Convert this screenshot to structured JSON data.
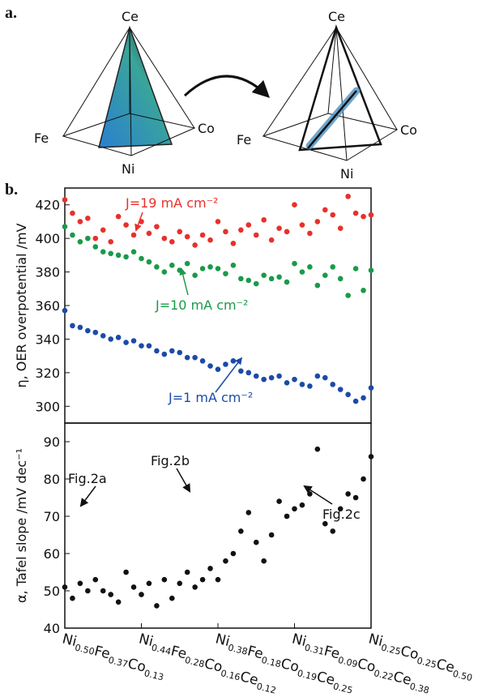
{
  "panel_labels": [
    "a.",
    "b."
  ],
  "diagrams": [
    {
      "labels": [
        "Ce",
        "Fe",
        "Co",
        "Ni"
      ]
    },
    {
      "labels": [
        "Ce",
        "Fe",
        "Co",
        "Ni"
      ]
    }
  ],
  "chart_data": [
    {
      "type": "scatter",
      "ylabel": "η, OER overpotential /mV",
      "x": [
        0,
        0.1,
        0.2,
        0.3,
        0.4,
        0.5,
        0.6,
        0.7,
        0.8,
        0.9,
        1,
        1.1,
        1.2,
        1.3,
        1.4,
        1.5,
        1.6,
        1.7,
        1.8,
        1.9,
        2,
        2.1,
        2.2,
        2.3,
        2.4,
        2.5,
        2.6,
        2.7,
        2.8,
        2.9,
        3,
        3.1,
        3.2,
        3.3,
        3.4,
        3.5,
        3.6,
        3.7,
        3.8,
        3.9,
        4
      ],
      "xlim": [
        0,
        4
      ],
      "ylim": [
        290,
        430
      ],
      "yticks": [
        300,
        320,
        340,
        360,
        380,
        400,
        420
      ],
      "series": [
        {
          "name": "J=19 mA cm⁻²",
          "color": "#e8302c",
          "values": [
            423,
            415,
            410,
            412,
            400,
            405,
            398,
            413,
            408,
            402,
            410,
            403,
            407,
            400,
            398,
            404,
            401,
            396,
            402,
            399,
            410,
            404,
            397,
            405,
            408,
            402,
            411,
            399,
            406,
            404,
            420,
            408,
            403,
            410,
            417,
            414,
            406,
            425,
            415,
            413,
            414
          ]
        },
        {
          "name": "J=10 mA cm⁻²",
          "color": "#1a9a4a",
          "values": [
            407,
            402,
            398,
            400,
            395,
            392,
            391,
            390,
            389,
            392,
            388,
            386,
            383,
            380,
            384,
            381,
            385,
            378,
            382,
            383,
            382,
            379,
            384,
            376,
            375,
            373,
            378,
            376,
            377,
            374,
            385,
            380,
            383,
            372,
            378,
            383,
            376,
            366,
            382,
            369,
            381
          ]
        },
        {
          "name": "J=1 mA cm⁻²",
          "color": "#1c4aa8",
          "values": [
            357,
            348,
            347,
            345,
            344,
            342,
            340,
            341,
            338,
            339,
            336,
            336,
            333,
            331,
            333,
            332,
            329,
            329,
            327,
            324,
            322,
            325,
            327,
            321,
            320,
            318,
            316,
            317,
            318,
            314,
            316,
            313,
            312,
            318,
            317,
            313,
            310,
            307,
            303,
            305,
            311
          ]
        }
      ]
    },
    {
      "type": "scatter",
      "ylabel": "α, Tafel slope /mV dec⁻¹",
      "x": [
        0,
        0.1,
        0.2,
        0.3,
        0.4,
        0.5,
        0.6,
        0.7,
        0.8,
        0.9,
        1,
        1.1,
        1.2,
        1.3,
        1.4,
        1.5,
        1.6,
        1.7,
        1.8,
        1.9,
        2,
        2.1,
        2.2,
        2.3,
        2.4,
        2.5,
        2.6,
        2.7,
        2.8,
        2.9,
        3,
        3.1,
        3.2,
        3.3,
        3.4,
        3.5,
        3.6,
        3.7,
        3.8,
        3.9,
        4
      ],
      "xlim": [
        0,
        4
      ],
      "ylim": [
        40,
        95
      ],
      "yticks": [
        40,
        50,
        60,
        70,
        80,
        90
      ],
      "xticks": [
        {
          "value": 0,
          "label": "Ni0.50Fe0.37Co0.13"
        },
        {
          "value": 1,
          "label": "Ni0.44Fe0.28Co0.16Ce0.12"
        },
        {
          "value": 2,
          "label": "Ni0.38Fe0.18Co0.19Ce0.25"
        },
        {
          "value": 3,
          "label": "Ni0.31Fe0.09Co0.22Ce0.38"
        },
        {
          "value": 4,
          "label": "Ni0.25Co0.25Ce0.50"
        }
      ],
      "series": [
        {
          "color": "#111111",
          "values": [
            51,
            48,
            52,
            50,
            53,
            50,
            49,
            47,
            55,
            51,
            49,
            52,
            46,
            53,
            48,
            52,
            55,
            51,
            53,
            56,
            53,
            58,
            60,
            66,
            71,
            63,
            58,
            65,
            74,
            70,
            72,
            73,
            76,
            88,
            68,
            66,
            72,
            76,
            75,
            80,
            86
          ]
        }
      ],
      "annotations": [
        "Fig.2a",
        "Fig.2b",
        "Fig.2c"
      ]
    }
  ]
}
